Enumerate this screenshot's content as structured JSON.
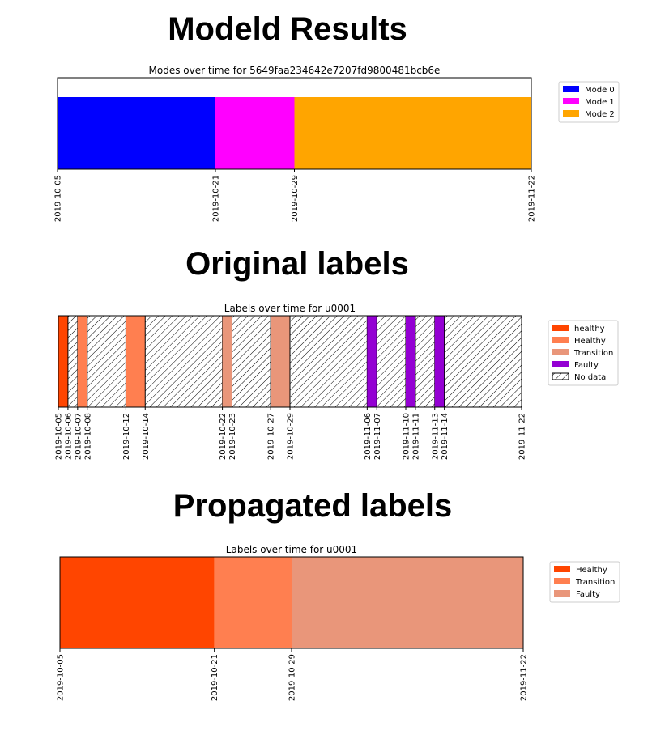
{
  "headings": {
    "modeld": "Modeld Results",
    "original": "Original labels",
    "propagated": "Propagated labels"
  },
  "chart_data": [
    {
      "type": "timeline",
      "title": "Modes over time for 5649faa234642e7207fd9800481bcb6e",
      "x_range": [
        "2019-10-05",
        "2019-11-22"
      ],
      "tick_labels": [
        "2019-10-05",
        "2019-10-21",
        "2019-10-29",
        "2019-11-22"
      ],
      "segments": [
        {
          "label": "Mode 0",
          "start": "2019-10-05",
          "end": "2019-10-21"
        },
        {
          "label": "Mode 1",
          "start": "2019-10-21",
          "end": "2019-10-29"
        },
        {
          "label": "Mode 2",
          "start": "2019-10-29",
          "end": "2019-11-22"
        }
      ],
      "legend": [
        {
          "label": "Mode 0",
          "color": "#0000ff"
        },
        {
          "label": "Mode 1",
          "color": "#ff00ff"
        },
        {
          "label": "Mode 2",
          "color": "#ffa500"
        }
      ],
      "legend_position": "right"
    },
    {
      "type": "timeline",
      "title": "Labels over time for u0001",
      "x_range": [
        "2019-10-05",
        "2019-11-22"
      ],
      "tick_labels": [
        "2019-10-05",
        "2019-10-06",
        "2019-10-07",
        "2019-10-08",
        "2019-10-12",
        "2019-10-14",
        "2019-10-22",
        "2019-10-23",
        "2019-10-27",
        "2019-10-29",
        "2019-11-06",
        "2019-11-07",
        "2019-11-10",
        "2019-11-11",
        "2019-11-13",
        "2019-11-14",
        "2019-11-22"
      ],
      "segments": [
        {
          "label": "healthy",
          "start": "2019-10-05",
          "end": "2019-10-06"
        },
        {
          "label": "No data",
          "start": "2019-10-06",
          "end": "2019-10-07"
        },
        {
          "label": "Healthy",
          "start": "2019-10-07",
          "end": "2019-10-08"
        },
        {
          "label": "No data",
          "start": "2019-10-08",
          "end": "2019-10-12"
        },
        {
          "label": "Healthy",
          "start": "2019-10-12",
          "end": "2019-10-14"
        },
        {
          "label": "No data",
          "start": "2019-10-14",
          "end": "2019-10-22"
        },
        {
          "label": "Transition",
          "start": "2019-10-22",
          "end": "2019-10-23"
        },
        {
          "label": "No data",
          "start": "2019-10-23",
          "end": "2019-10-27"
        },
        {
          "label": "Transition",
          "start": "2019-10-27",
          "end": "2019-10-29"
        },
        {
          "label": "No data",
          "start": "2019-10-29",
          "end": "2019-11-06"
        },
        {
          "label": "Faulty",
          "start": "2019-11-06",
          "end": "2019-11-07"
        },
        {
          "label": "No data",
          "start": "2019-11-07",
          "end": "2019-11-10"
        },
        {
          "label": "Faulty",
          "start": "2019-11-10",
          "end": "2019-11-11"
        },
        {
          "label": "No data",
          "start": "2019-11-11",
          "end": "2019-11-13"
        },
        {
          "label": "Faulty",
          "start": "2019-11-13",
          "end": "2019-11-14"
        },
        {
          "label": "No data",
          "start": "2019-11-14",
          "end": "2019-11-22"
        }
      ],
      "legend": [
        {
          "label": "healthy",
          "color": "#ff4500"
        },
        {
          "label": "Healthy",
          "color": "#ff7f50"
        },
        {
          "label": "Transition",
          "color": "#e9967a"
        },
        {
          "label": "Faulty",
          "color": "#9400d3"
        },
        {
          "label": "No data",
          "color": "hatch"
        }
      ],
      "legend_position": "right"
    },
    {
      "type": "timeline",
      "title": "Labels over time for u0001",
      "x_range": [
        "2019-10-05",
        "2019-11-22"
      ],
      "tick_labels": [
        "2019-10-05",
        "2019-10-21",
        "2019-10-29",
        "2019-11-22"
      ],
      "segments": [
        {
          "label": "Healthy",
          "start": "2019-10-05",
          "end": "2019-10-21"
        },
        {
          "label": "Transition",
          "start": "2019-10-21",
          "end": "2019-10-29"
        },
        {
          "label": "Faulty",
          "start": "2019-10-29",
          "end": "2019-11-22"
        }
      ],
      "legend": [
        {
          "label": "Healthy",
          "color": "#ff4500"
        },
        {
          "label": "Transition",
          "color": "#ff7f50"
        },
        {
          "label": "Faulty",
          "color": "#e9967a"
        }
      ],
      "legend_position": "right"
    }
  ]
}
